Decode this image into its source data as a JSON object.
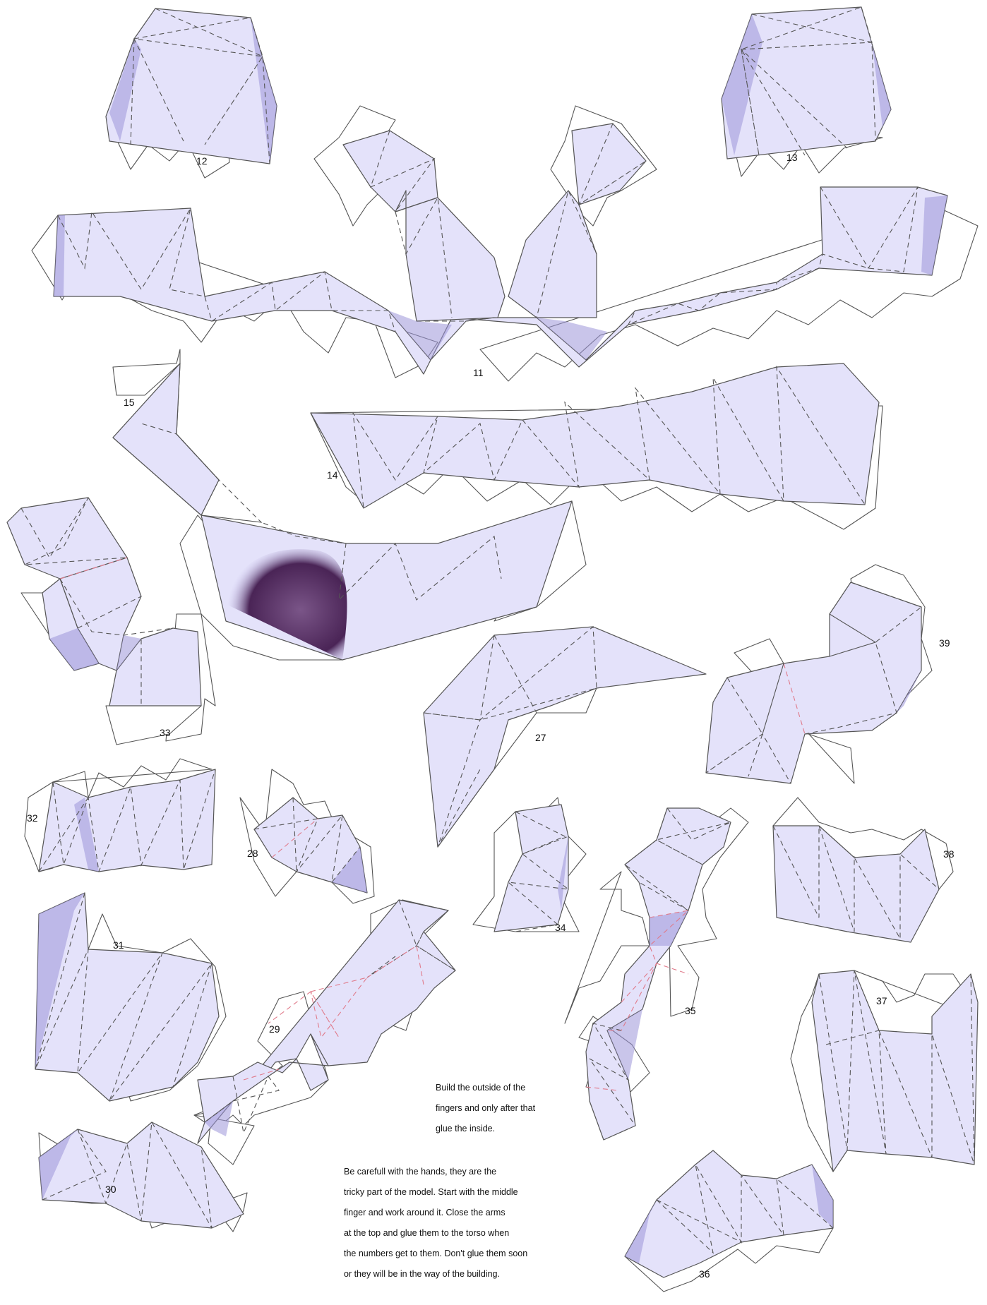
{
  "part_labels": {
    "p11": "11",
    "p12": "12",
    "p13": "13",
    "p14": "14",
    "p15": "15",
    "p27": "27",
    "p28": "28",
    "p29": "29",
    "p30": "30",
    "p31": "31",
    "p32": "32",
    "p33": "33",
    "p34": "34",
    "p35": "35",
    "p36": "36",
    "p37": "37",
    "p38": "38",
    "p39": "39"
  },
  "note_fingers": [
    "Build the outside of the",
    "fingers and only after that",
    "glue the inside."
  ],
  "note_hands": [
    "Be carefull with the hands, they are the",
    "tricky part of the model. Start with the middle",
    "finger and work around it. Close the arms",
    "at the top and glue them to the torso when",
    "the numbers get to them. Don't glue them soon",
    "or they will be in the way of the building."
  ],
  "colors": {
    "paper_fill": "#e4e2fa",
    "shading": "#9c96d8",
    "dark_patch": "#4a2456",
    "fold_line": "#555555",
    "valley_fold": "#e07a8a"
  }
}
